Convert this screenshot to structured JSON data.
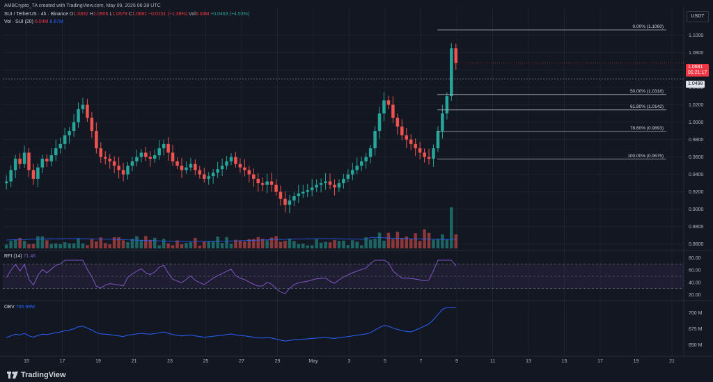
{
  "header": {
    "author_line": "AMBCrypto_TA created with TradingView.com, May 09, 2026 06:38 UTC",
    "symbol": "SUI / TetherUS · 4h · Binance",
    "o_label": "O",
    "o_value": "1.0832",
    "h_label": "H",
    "h_value": "1.0906",
    "l_label": "L",
    "l_value": "1.0679",
    "c_label": "C",
    "c_value": "1.0681",
    "change": "−0.0151 (−1.39%)",
    "vol_label": "Vol",
    "vol_value": "6.04M",
    "change2": "+0.0463 (+4.53%)",
    "vol_line_label": "Vol · SUI (20)",
    "vol_line_v1": "6.04M",
    "vol_line_v2": "8.67M"
  },
  "currency": "USDT",
  "price_axis": [
    "1.1000",
    "1.0800",
    "1.0600",
    "1.0400",
    "1.0200",
    "1.0000",
    "0.9800",
    "0.9600",
    "0.9400",
    "0.9200",
    "0.9000",
    "0.8800",
    "0.8600"
  ],
  "last_price": {
    "value": "1.0681",
    "countdown": "01:21:17"
  },
  "crosshair_price": "1.0498",
  "fib": [
    {
      "label": "0.00% (1.1060)",
      "price": 1.106
    },
    {
      "label": "50.00% (1.0318)",
      "price": 1.0318
    },
    {
      "label": "61.80% (1.0142)",
      "price": 1.0142
    },
    {
      "label": "78.60% (0.9893)",
      "price": 0.9893
    },
    {
      "label": "100.00% (0.9575)",
      "price": 0.9575
    }
  ],
  "rsi": {
    "label": "RFI (14)",
    "value": "71.46",
    "axis": [
      "80.00",
      "60.00",
      "40.00",
      "20.00"
    ]
  },
  "obv": {
    "label": "OBV",
    "value": "705.99M",
    "axis": [
      "700 M",
      "675 M",
      "650 M"
    ]
  },
  "time_axis": [
    "15",
    "17",
    "19",
    "21",
    "23",
    "25",
    "27",
    "29",
    "May",
    "3",
    "5",
    "7",
    "9",
    "11",
    "13",
    "15",
    "17",
    "19",
    "21"
  ],
  "brand": "TradingView",
  "colors": {
    "up": "#26a69a",
    "down": "#ef5350",
    "bg": "#131722",
    "rsi_line": "#7e57c2",
    "obv_line": "#2962ff"
  },
  "chart_data": {
    "type": "candlestick",
    "timeframe": "4h",
    "ohlc_close_approx": [
      0.932,
      0.945,
      0.958,
      0.952,
      0.965,
      0.945,
      0.935,
      0.948,
      0.958,
      0.955,
      0.962,
      0.97,
      0.975,
      0.985,
      0.99,
      1.0,
      1.015,
      1.02,
      1.005,
      0.99,
      0.97,
      0.96,
      0.958,
      0.955,
      0.95,
      0.945,
      0.94,
      0.95,
      0.955,
      0.96,
      0.965,
      0.96,
      0.958,
      0.962,
      0.97,
      0.975,
      0.965,
      0.955,
      0.95,
      0.945,
      0.948,
      0.952,
      0.945,
      0.94,
      0.935,
      0.938,
      0.942,
      0.946,
      0.95,
      0.955,
      0.96,
      0.952,
      0.948,
      0.945,
      0.94,
      0.935,
      0.93,
      0.928,
      0.932,
      0.928,
      0.92,
      0.912,
      0.905,
      0.91,
      0.915,
      0.918,
      0.92,
      0.922,
      0.925,
      0.928,
      0.93,
      0.932,
      0.928,
      0.925,
      0.93,
      0.935,
      0.94,
      0.945,
      0.95,
      0.955,
      0.96,
      0.97,
      0.99,
      1.01,
      1.025,
      1.02,
      1.005,
      0.995,
      0.985,
      0.98,
      0.975,
      0.97,
      0.965,
      0.96,
      0.958,
      0.97,
      0.99,
      1.01,
      1.03,
      1.085,
      1.068
    ],
    "rsi_range": [
      20,
      80
    ],
    "obv_range_M": [
      640,
      710
    ]
  }
}
